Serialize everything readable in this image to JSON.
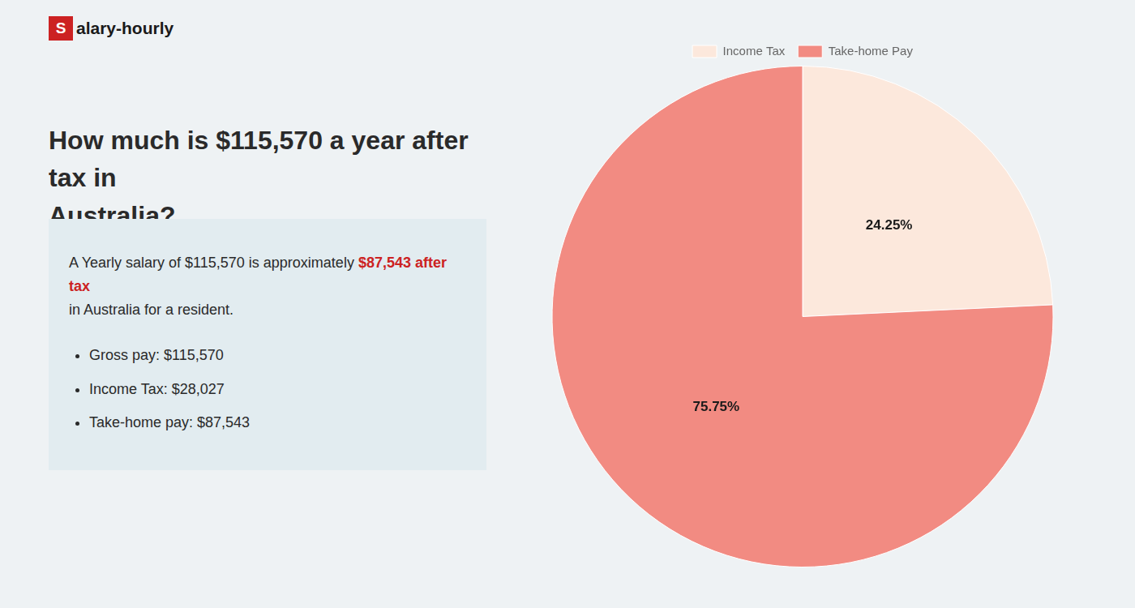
{
  "chart_data": {
    "type": "pie",
    "title": [
      "How much is $115,570 a year after tax in",
      "Australia?"
    ],
    "annotations": [
      {
        "text": "S"
      },
      {
        "text": "alary-hourly"
      },
      {
        "text": "A Yearly salary of $115,570 is approximately "
      },
      {
        "text": "$87,543 after tax",
        "color": "#cc2222"
      },
      {
        "text": "in Australia for a resident."
      },
      {
        "text": "Gross pay: $115,570"
      },
      {
        "text": "Income Tax: $28,027"
      },
      {
        "text": "Take-home pay: $87,543"
      }
    ],
    "categories": [
      "Income Tax",
      "Take-home Pay"
    ],
    "values": [
      24.25,
      75.75
    ],
    "value_labels": [
      "24.25%",
      "75.75%"
    ],
    "colors": [
      "#fce8dc",
      "#f28b82"
    ],
    "data_labels": true,
    "legend": "top"
  }
}
